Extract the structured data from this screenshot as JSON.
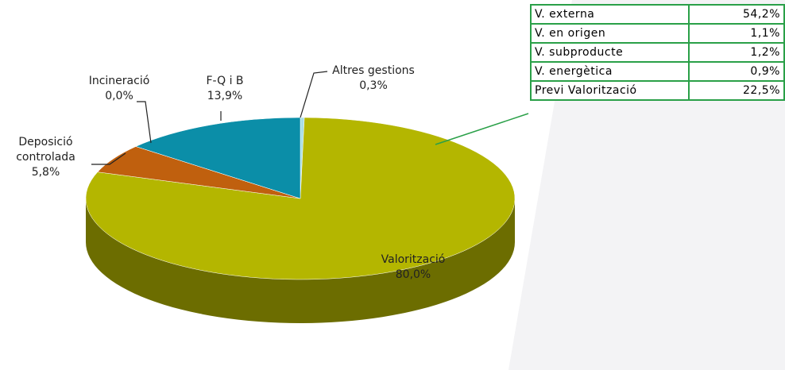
{
  "chart_data": {
    "type": "pie",
    "categories": [
      "Altres gestions",
      "Valorització",
      "Deposició controlada",
      "Incineració",
      "F-Q i B"
    ],
    "values": [
      0.3,
      80.0,
      5.8,
      0.0,
      13.9
    ],
    "value_labels": [
      "0,3%",
      "80,0%",
      "5,8%",
      "0,0%",
      "13,9%"
    ],
    "colors": [
      "#a8dde6",
      "#b4b600",
      "#c0600e",
      "#8a3a08",
      "#0b8ea8"
    ]
  },
  "table": {
    "rows": [
      [
        "V. externa",
        "54,2%"
      ],
      [
        "V. en origen",
        "1,1%"
      ],
      [
        "V. subproducte",
        "1,2%"
      ],
      [
        "V. energètica",
        "0,9%"
      ],
      [
        "Previ Valorització",
        "22,5%"
      ]
    ]
  }
}
